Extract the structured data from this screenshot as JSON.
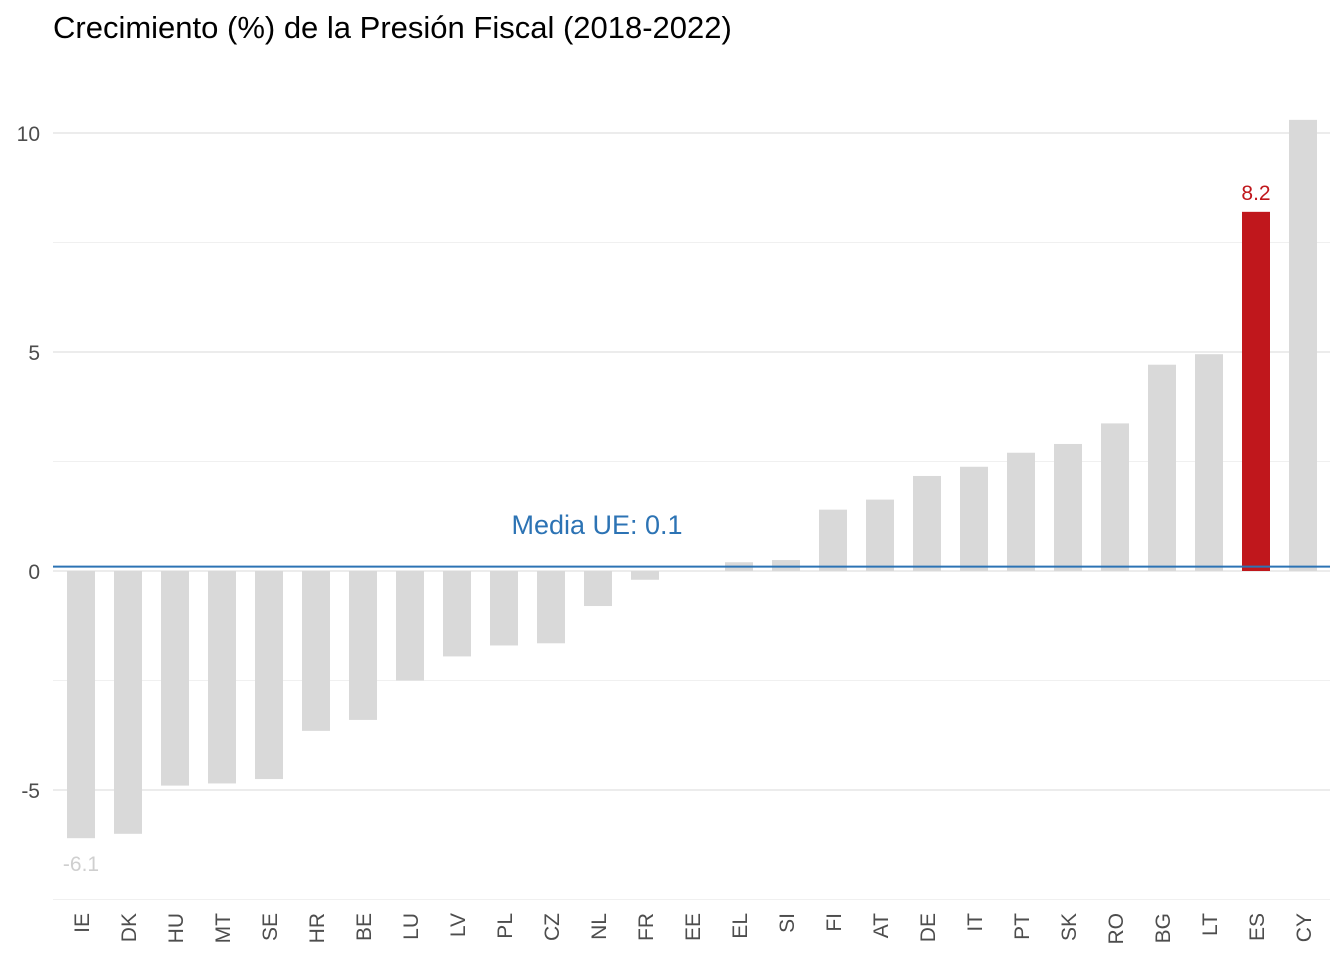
{
  "title": "Crecimiento (%) de la Presión Fiscal (2018-2022)",
  "chart_data": {
    "type": "bar",
    "title": "Crecimiento (%) de la Presión Fiscal (2018-2022)",
    "xlabel": "",
    "ylabel": "",
    "categories": [
      "IE",
      "DK",
      "HU",
      "MT",
      "SE",
      "HR",
      "BE",
      "LU",
      "LV",
      "PL",
      "CZ",
      "NL",
      "FR",
      "EE",
      "EL",
      "SI",
      "FI",
      "AT",
      "DE",
      "IT",
      "PT",
      "SK",
      "RO",
      "BG",
      "LT",
      "ES",
      "CY"
    ],
    "values": [
      -6.1,
      -6.0,
      -4.9,
      -4.85,
      -4.75,
      -3.65,
      -3.4,
      -2.5,
      -1.95,
      -1.7,
      -1.65,
      -0.8,
      -0.2,
      0.0,
      0.2,
      0.25,
      1.4,
      1.63,
      2.17,
      2.38,
      2.7,
      2.9,
      3.37,
      4.71,
      4.95,
      8.2,
      10.3
    ],
    "highlight": {
      "category": "ES",
      "label": "8.2",
      "color": "#c0171c"
    },
    "min_label": {
      "category": "IE",
      "label": "-6.1"
    },
    "reference_line": {
      "value": 0.1,
      "label": "Media UE: 0.1",
      "color": "#2c73b4"
    },
    "bar_color": "#d9d9d9",
    "ylim": [
      -7.2,
      10.6
    ],
    "yticks": [
      -5,
      0,
      5,
      10
    ],
    "grid": true
  }
}
